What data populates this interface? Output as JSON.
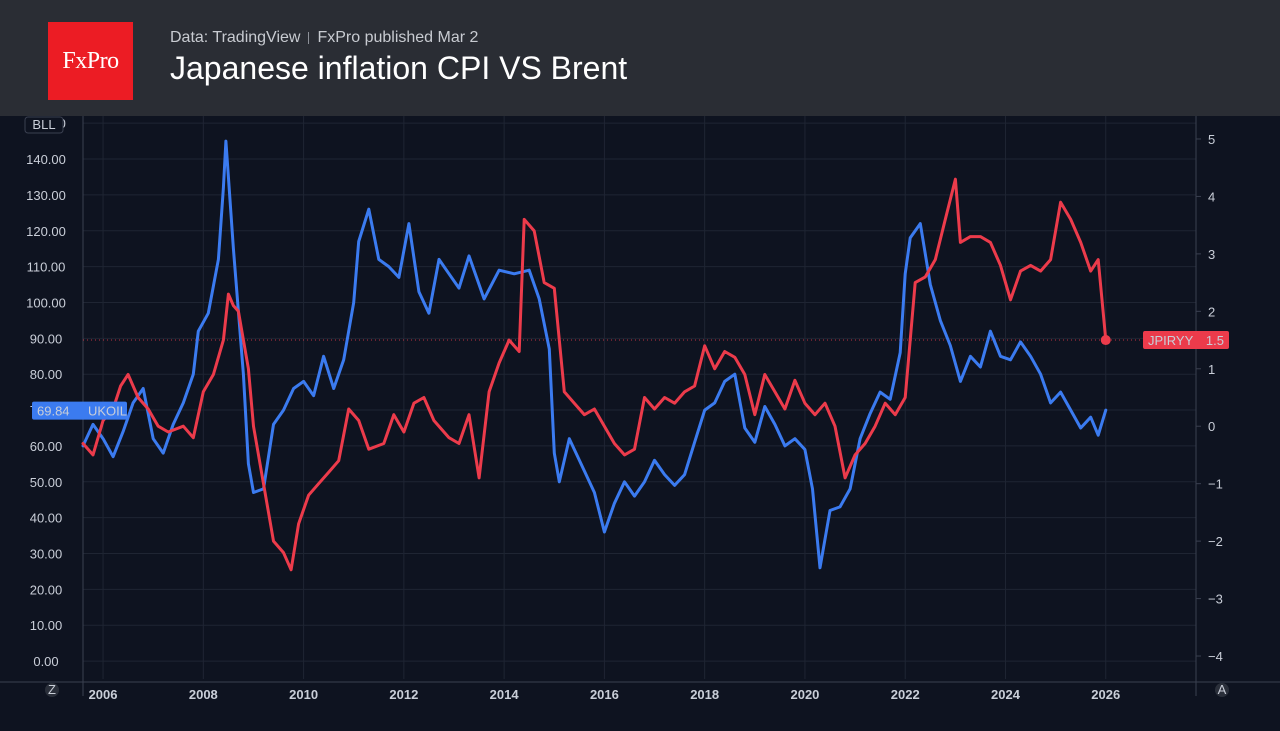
{
  "header": {
    "logo": "FxPro",
    "source": "Data: TradingView",
    "published": "FxPro published Mar 2",
    "title": "Japanese inflation CPI VS Brent"
  },
  "corner_labels": {
    "top_left": "BLL",
    "bottom_left": "Z",
    "bottom_right": "A"
  },
  "colors": {
    "ukoil": "#3b7bf0",
    "jpiryy": "#ec3b4b",
    "background": "#0e1320",
    "header": "#2a2d34"
  },
  "chart_data": {
    "type": "line",
    "title": "Japanese inflation CPI VS Brent",
    "x_range": [
      2005.6,
      2027.8
    ],
    "x_ticks": [
      2006,
      2008,
      2010,
      2012,
      2014,
      2016,
      2018,
      2020,
      2022,
      2024,
      2026
    ],
    "left_axis": {
      "unit": "BLL",
      "range": [
        -5,
        152
      ],
      "ticks": [
        "0.00",
        "10.00",
        "20.00",
        "30.00",
        "40.00",
        "50.00",
        "60.00",
        "70.00",
        "80.00",
        "90.00",
        "100.00",
        "110.00",
        "120.00",
        "130.00",
        "140.00",
        "150.00"
      ]
    },
    "right_axis": {
      "range": [
        -4.4,
        5.4
      ],
      "ticks": [
        "−4",
        "−3",
        "−2",
        "−1",
        "0",
        "1",
        "2",
        "3",
        "4",
        "5"
      ]
    },
    "series": [
      {
        "name": "UKOIL",
        "axis": "left",
        "last_value": "69.84",
        "points": [
          [
            2005.6,
            60
          ],
          [
            2005.8,
            66
          ],
          [
            2006.0,
            62
          ],
          [
            2006.2,
            57
          ],
          [
            2006.4,
            64
          ],
          [
            2006.6,
            72
          ],
          [
            2006.8,
            76
          ],
          [
            2007.0,
            62
          ],
          [
            2007.2,
            58
          ],
          [
            2007.4,
            66
          ],
          [
            2007.6,
            72
          ],
          [
            2007.8,
            80
          ],
          [
            2007.9,
            92
          ],
          [
            2008.1,
            97
          ],
          [
            2008.3,
            112
          ],
          [
            2008.4,
            132
          ],
          [
            2008.45,
            145
          ],
          [
            2008.6,
            115
          ],
          [
            2008.8,
            80
          ],
          [
            2008.9,
            55
          ],
          [
            2009.0,
            47
          ],
          [
            2009.2,
            48
          ],
          [
            2009.4,
            66
          ],
          [
            2009.6,
            70
          ],
          [
            2009.8,
            76
          ],
          [
            2010.0,
            78
          ],
          [
            2010.2,
            74
          ],
          [
            2010.4,
            85
          ],
          [
            2010.6,
            76
          ],
          [
            2010.8,
            84
          ],
          [
            2011.0,
            100
          ],
          [
            2011.1,
            117
          ],
          [
            2011.3,
            126
          ],
          [
            2011.5,
            112
          ],
          [
            2011.7,
            110
          ],
          [
            2011.9,
            107
          ],
          [
            2012.1,
            122
          ],
          [
            2012.3,
            103
          ],
          [
            2012.5,
            97
          ],
          [
            2012.7,
            112
          ],
          [
            2012.9,
            108
          ],
          [
            2013.1,
            104
          ],
          [
            2013.3,
            113
          ],
          [
            2013.6,
            101
          ],
          [
            2013.9,
            109
          ],
          [
            2014.2,
            108
          ],
          [
            2014.5,
            109
          ],
          [
            2014.7,
            101
          ],
          [
            2014.9,
            87
          ],
          [
            2015.0,
            58
          ],
          [
            2015.1,
            50
          ],
          [
            2015.3,
            62
          ],
          [
            2015.6,
            53
          ],
          [
            2015.8,
            47
          ],
          [
            2016.0,
            36
          ],
          [
            2016.2,
            44
          ],
          [
            2016.4,
            50
          ],
          [
            2016.6,
            46
          ],
          [
            2016.8,
            50
          ],
          [
            2017.0,
            56
          ],
          [
            2017.2,
            52
          ],
          [
            2017.4,
            49
          ],
          [
            2017.6,
            52
          ],
          [
            2017.8,
            61
          ],
          [
            2018.0,
            70
          ],
          [
            2018.2,
            72
          ],
          [
            2018.4,
            78
          ],
          [
            2018.6,
            80
          ],
          [
            2018.8,
            65
          ],
          [
            2019.0,
            61
          ],
          [
            2019.2,
            71
          ],
          [
            2019.4,
            66
          ],
          [
            2019.6,
            60
          ],
          [
            2019.8,
            62
          ],
          [
            2020.0,
            59
          ],
          [
            2020.15,
            48
          ],
          [
            2020.3,
            26
          ],
          [
            2020.5,
            42
          ],
          [
            2020.7,
            43
          ],
          [
            2020.9,
            48
          ],
          [
            2021.1,
            62
          ],
          [
            2021.3,
            69
          ],
          [
            2021.5,
            75
          ],
          [
            2021.7,
            73
          ],
          [
            2021.9,
            86
          ],
          [
            2022.0,
            108
          ],
          [
            2022.1,
            118
          ],
          [
            2022.3,
            122
          ],
          [
            2022.5,
            105
          ],
          [
            2022.7,
            95
          ],
          [
            2022.9,
            88
          ],
          [
            2023.1,
            78
          ],
          [
            2023.3,
            85
          ],
          [
            2023.5,
            82
          ],
          [
            2023.7,
            92
          ],
          [
            2023.9,
            85
          ],
          [
            2024.1,
            84
          ],
          [
            2024.3,
            89
          ],
          [
            2024.5,
            85
          ],
          [
            2024.7,
            80
          ],
          [
            2024.9,
            72
          ],
          [
            2025.1,
            75
          ],
          [
            2025.3,
            70
          ],
          [
            2025.5,
            65
          ],
          [
            2025.7,
            68
          ],
          [
            2025.85,
            63
          ],
          [
            2026.0,
            70
          ]
        ]
      },
      {
        "name": "JPIRYY",
        "axis": "right",
        "last_value": "1.5",
        "points": [
          [
            2005.6,
            -0.3
          ],
          [
            2005.8,
            -0.5
          ],
          [
            2006.0,
            0.1
          ],
          [
            2006.2,
            0.3
          ],
          [
            2006.35,
            0.7
          ],
          [
            2006.5,
            0.9
          ],
          [
            2006.7,
            0.5
          ],
          [
            2006.9,
            0.3
          ],
          [
            2007.1,
            0.0
          ],
          [
            2007.3,
            -0.1
          ],
          [
            2007.6,
            0.0
          ],
          [
            2007.8,
            -0.2
          ],
          [
            2008.0,
            0.6
          ],
          [
            2008.2,
            0.9
          ],
          [
            2008.4,
            1.5
          ],
          [
            2008.5,
            2.3
          ],
          [
            2008.6,
            2.1
          ],
          [
            2008.7,
            2.0
          ],
          [
            2008.9,
            1.0
          ],
          [
            2009.0,
            0.0
          ],
          [
            2009.2,
            -1.0
          ],
          [
            2009.4,
            -2.0
          ],
          [
            2009.6,
            -2.2
          ],
          [
            2009.75,
            -2.5
          ],
          [
            2009.9,
            -1.7
          ],
          [
            2010.1,
            -1.2
          ],
          [
            2010.3,
            -1.0
          ],
          [
            2010.5,
            -0.8
          ],
          [
            2010.7,
            -0.6
          ],
          [
            2010.9,
            0.3
          ],
          [
            2011.1,
            0.1
          ],
          [
            2011.3,
            -0.4
          ],
          [
            2011.6,
            -0.3
          ],
          [
            2011.8,
            0.2
          ],
          [
            2012.0,
            -0.1
          ],
          [
            2012.2,
            0.4
          ],
          [
            2012.4,
            0.5
          ],
          [
            2012.6,
            0.1
          ],
          [
            2012.9,
            -0.2
          ],
          [
            2013.1,
            -0.3
          ],
          [
            2013.3,
            0.2
          ],
          [
            2013.5,
            -0.9
          ],
          [
            2013.7,
            0.6
          ],
          [
            2013.9,
            1.1
          ],
          [
            2014.1,
            1.5
          ],
          [
            2014.3,
            1.3
          ],
          [
            2014.4,
            3.6
          ],
          [
            2014.6,
            3.4
          ],
          [
            2014.8,
            2.5
          ],
          [
            2015.0,
            2.4
          ],
          [
            2015.2,
            0.6
          ],
          [
            2015.4,
            0.4
          ],
          [
            2015.6,
            0.2
          ],
          [
            2015.8,
            0.3
          ],
          [
            2016.0,
            0.0
          ],
          [
            2016.2,
            -0.3
          ],
          [
            2016.4,
            -0.5
          ],
          [
            2016.6,
            -0.4
          ],
          [
            2016.8,
            0.5
          ],
          [
            2017.0,
            0.3
          ],
          [
            2017.2,
            0.5
          ],
          [
            2017.4,
            0.4
          ],
          [
            2017.6,
            0.6
          ],
          [
            2017.8,
            0.7
          ],
          [
            2018.0,
            1.4
          ],
          [
            2018.2,
            1.0
          ],
          [
            2018.4,
            1.3
          ],
          [
            2018.6,
            1.2
          ],
          [
            2018.8,
            0.9
          ],
          [
            2019.0,
            0.2
          ],
          [
            2019.2,
            0.9
          ],
          [
            2019.4,
            0.6
          ],
          [
            2019.6,
            0.3
          ],
          [
            2019.8,
            0.8
          ],
          [
            2020.0,
            0.4
          ],
          [
            2020.2,
            0.2
          ],
          [
            2020.4,
            0.4
          ],
          [
            2020.6,
            0.0
          ],
          [
            2020.8,
            -0.9
          ],
          [
            2021.0,
            -0.5
          ],
          [
            2021.2,
            -0.3
          ],
          [
            2021.4,
            0.0
          ],
          [
            2021.6,
            0.4
          ],
          [
            2021.8,
            0.2
          ],
          [
            2022.0,
            0.5
          ],
          [
            2022.2,
            2.5
          ],
          [
            2022.4,
            2.6
          ],
          [
            2022.6,
            2.9
          ],
          [
            2022.8,
            3.6
          ],
          [
            2023.0,
            4.3
          ],
          [
            2023.1,
            3.2
          ],
          [
            2023.3,
            3.3
          ],
          [
            2023.5,
            3.3
          ],
          [
            2023.7,
            3.2
          ],
          [
            2023.9,
            2.8
          ],
          [
            2024.1,
            2.2
          ],
          [
            2024.3,
            2.7
          ],
          [
            2024.5,
            2.8
          ],
          [
            2024.7,
            2.7
          ],
          [
            2024.9,
            2.9
          ],
          [
            2025.1,
            3.9
          ],
          [
            2025.3,
            3.6
          ],
          [
            2025.5,
            3.2
          ],
          [
            2025.7,
            2.7
          ],
          [
            2025.85,
            2.9
          ],
          [
            2026.0,
            1.5
          ]
        ]
      }
    ]
  }
}
